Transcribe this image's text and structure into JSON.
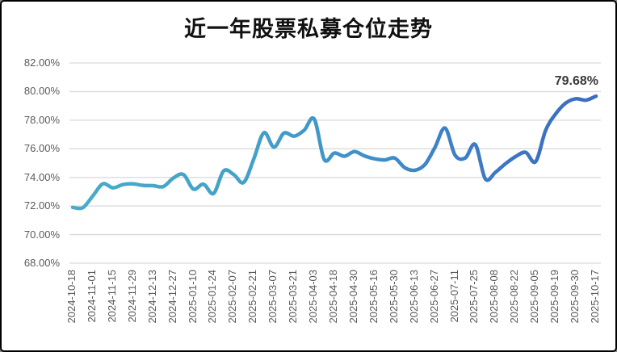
{
  "chart_data": {
    "type": "line",
    "title": "近一年股票私募仓位走势",
    "end_label": "79.68%",
    "smooth": true,
    "grid": "horizontal-only",
    "ylim": [
      68,
      82
    ],
    "y_ticks": [
      "82.00%",
      "80.00%",
      "78.00%",
      "76.00%",
      "74.00%",
      "72.00%",
      "70.00%",
      "68.00%"
    ],
    "tick_labels": [
      "2024-10-18",
      "2024-11-01",
      "2024-11-15",
      "2024-11-29",
      "2024-12-13",
      "2024-12-27",
      "2025-01-10",
      "2025-01-24",
      "2025-02-07",
      "2025-02-21",
      "2025-03-07",
      "2025-03-21",
      "2025-04-03",
      "2025-04-18",
      "2025-04-30",
      "2025-05-16",
      "2025-05-30",
      "2025-06-13",
      "2025-06-27",
      "2025-07-11",
      "2025-07-25",
      "2025-08-08",
      "2025-08-22",
      "2025-09-05",
      "2025-09-19",
      "2025-09-30",
      "2025-10-17"
    ],
    "x": [
      "2024-10-18",
      "2024-10-25",
      "2024-11-01",
      "2024-11-08",
      "2024-11-15",
      "2024-11-22",
      "2024-11-29",
      "2024-12-06",
      "2024-12-13",
      "2024-12-20",
      "2024-12-27",
      "2025-01-03",
      "2025-01-10",
      "2025-01-17",
      "2025-01-24",
      "2025-01-27",
      "2025-02-07",
      "2025-02-14",
      "2025-02-21",
      "2025-02-28",
      "2025-03-07",
      "2025-03-14",
      "2025-03-21",
      "2025-03-28",
      "2025-04-03",
      "2025-04-11",
      "2025-04-18",
      "2025-04-25",
      "2025-04-30",
      "2025-05-09",
      "2025-05-16",
      "2025-05-23",
      "2025-05-30",
      "2025-06-06",
      "2025-06-13",
      "2025-06-20",
      "2025-06-27",
      "2025-07-04",
      "2025-07-11",
      "2025-07-18",
      "2025-07-25",
      "2025-08-01",
      "2025-08-08",
      "2025-08-15",
      "2025-08-22",
      "2025-08-29",
      "2025-09-05",
      "2025-09-12",
      "2025-09-19",
      "2025-09-26",
      "2025-09-30",
      "2025-10-10",
      "2025-10-17"
    ],
    "values": [
      71.9,
      71.88,
      72.7,
      73.55,
      73.27,
      73.5,
      73.55,
      73.44,
      73.42,
      73.36,
      73.95,
      74.2,
      73.18,
      73.52,
      72.88,
      74.45,
      74.2,
      73.65,
      75.3,
      77.12,
      76.12,
      77.1,
      76.88,
      77.3,
      78.08,
      75.25,
      75.7,
      75.48,
      75.8,
      75.5,
      75.3,
      75.22,
      75.35,
      74.68,
      74.5,
      74.9,
      76.1,
      77.45,
      75.55,
      75.35,
      76.3,
      73.9,
      74.35,
      74.95,
      75.45,
      75.75,
      75.1,
      77.3,
      78.45,
      79.2,
      79.5,
      79.4,
      79.68
    ],
    "line_gradient": [
      "#48acc9",
      "#43a0c9",
      "#3e8ac7",
      "#3c74c3",
      "#3b6ec1"
    ],
    "gridline_color": "#d9d9d9",
    "tick_label_color": "#595959",
    "title_color": "#111111",
    "annotation_color": "#3a3a3a",
    "background_color": "#ffffff",
    "border_color": "#000000"
  }
}
